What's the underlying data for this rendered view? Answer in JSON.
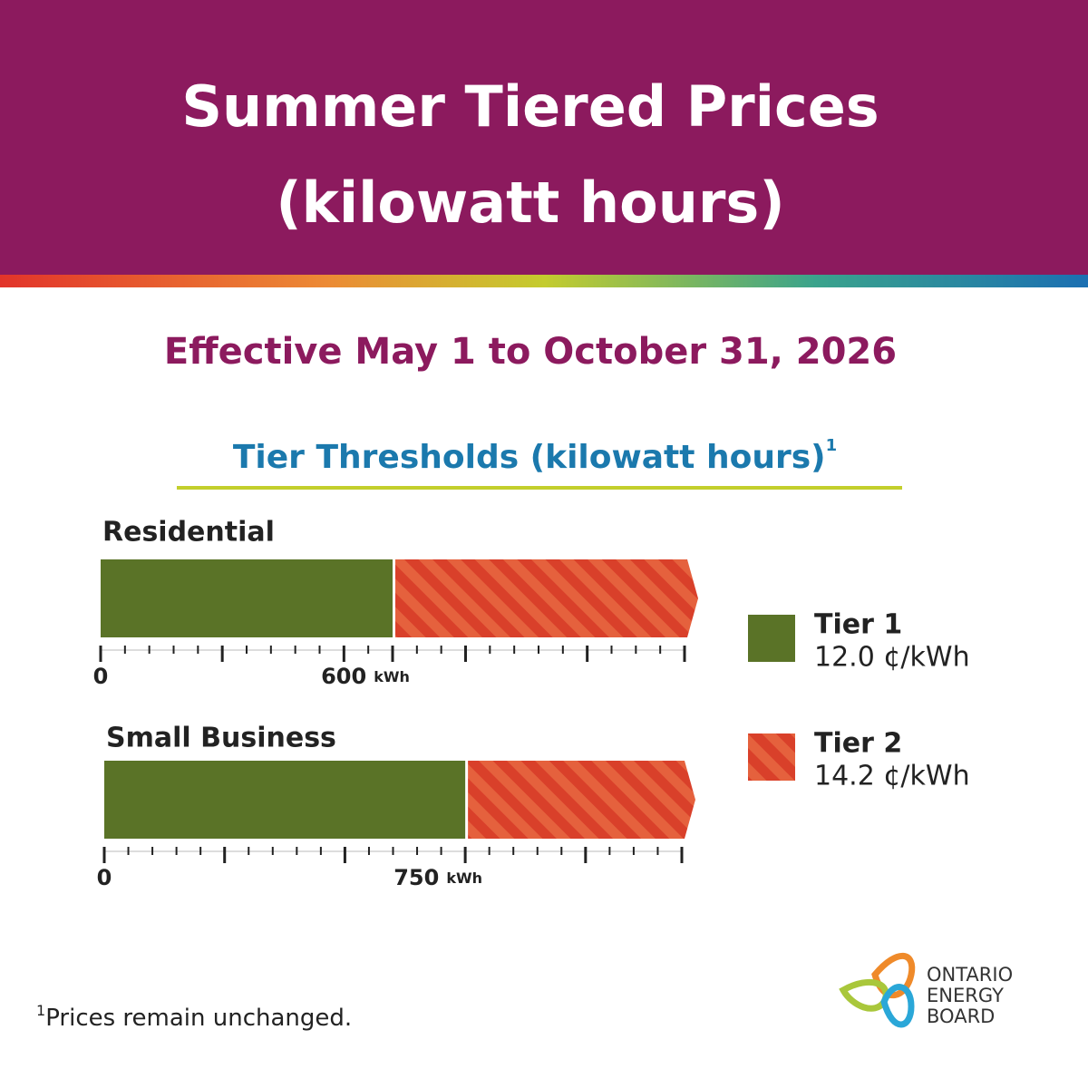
{
  "header": {
    "title_line1": "Summer Tiered Prices",
    "title_line2": "(kilowatt hours)"
  },
  "subtitle": "Effective May 1 to October 31, 2026",
  "section_title": "Tier Thresholds (kilowatt hours)",
  "section_title_note": "1",
  "charts": [
    {
      "label": "Residential",
      "xlim": [
        0,
        1200
      ],
      "threshold": 600,
      "ticks": [
        0,
        600
      ],
      "unit": "kWh",
      "minor_ticks": [
        0,
        50,
        100,
        150,
        200,
        250,
        300,
        350,
        400,
        450,
        500,
        550,
        600,
        650,
        700,
        750,
        800,
        850,
        900,
        950,
        1000,
        1050,
        1100,
        1150,
        1200
      ]
    },
    {
      "label": "Small Business",
      "xlim": [
        0,
        1200
      ],
      "threshold": 750,
      "ticks": [
        0,
        750
      ],
      "unit": "kWh",
      "minor_ticks": [
        0,
        50,
        100,
        150,
        200,
        250,
        300,
        350,
        400,
        450,
        500,
        550,
        600,
        650,
        700,
        750,
        800,
        850,
        900,
        950,
        1000,
        1050,
        1100,
        1150,
        1200
      ]
    }
  ],
  "legend": [
    {
      "name": "Tier 1",
      "price": "12.0 ¢/kWh",
      "color": "#5a7327"
    },
    {
      "name": "Tier 2",
      "price": "14.2 ¢/kWh",
      "color": "#d9402a"
    }
  ],
  "footnote": {
    "mark": "1",
    "text": "Prices remain unchanged."
  },
  "logo": [
    "ONTARIO",
    "ENERGY",
    "BOARD"
  ]
}
